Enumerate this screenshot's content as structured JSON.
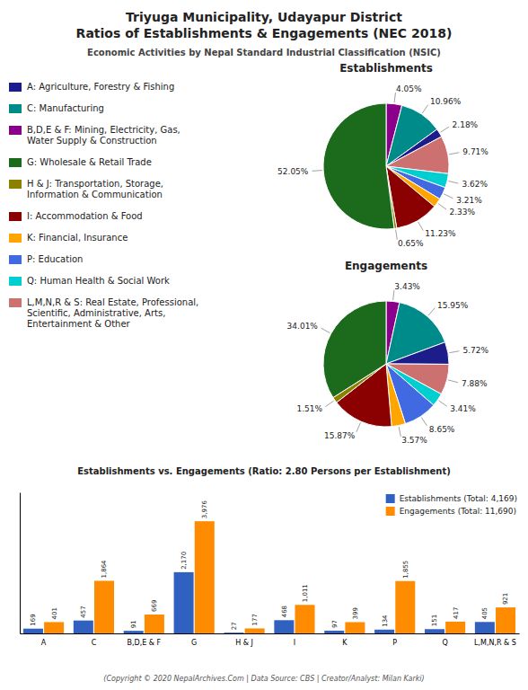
{
  "title": [
    "Triyuga Municipality, Udayapur District",
    "Ratios of Establishments & Engagements (NEC 2018)"
  ],
  "subtitle": "Economic Activities by Nepal Standard Industrial Classification (NSIC)",
  "footer": "(Copyright © 2020 NepalArchives.Com | Data Source: CBS | Creator/Analyst: Milan Karki)",
  "legend_entries": [
    {
      "name": "A: Agriculture, Forestry & Fishing",
      "color": "#1C1C8B"
    },
    {
      "name": "C: Manufacturing",
      "color": "#008B8B"
    },
    {
      "name": "B,D,E & F: Mining, Electricity, Gas,\nWater Supply & Construction",
      "color": "#8B008B"
    },
    {
      "name": "G: Wholesale & Retail Trade",
      "color": "#1C6B1C"
    },
    {
      "name": "H & J: Transportation, Storage,\nInformation & Communication",
      "color": "#8B8000"
    },
    {
      "name": "I: Accommodation & Food",
      "color": "#8B0000"
    },
    {
      "name": "K: Financial, Insurance",
      "color": "#FFA500"
    },
    {
      "name": "P: Education",
      "color": "#4169E1"
    },
    {
      "name": "Q: Human Health & Social Work",
      "color": "#00CED1"
    },
    {
      "name": "L,M,N,R & S: Real Estate, Professional,\nScientific, Administrative, Arts,\nEntertainment & Other",
      "color": "#CD7070"
    }
  ],
  "chart_data": [
    {
      "type": "pie",
      "title": "Establishments",
      "values": [
        4.05,
        10.96,
        2.18,
        9.71,
        3.62,
        3.21,
        2.33,
        11.23,
        0.65,
        52.05
      ],
      "value_labels": [
        "4.05%",
        "10.96%",
        "2.18%",
        "9.71%",
        "3.62%",
        "3.21%",
        "2.33%",
        "11.23%",
        "0.65%",
        "52.05%"
      ],
      "colors": [
        "#8B008B",
        "#008B8B",
        "#1C1C8B",
        "#CD7070",
        "#00CED1",
        "#4169E1",
        "#FFA500",
        "#8B0000",
        "#8B8000",
        "#1C6B1C"
      ],
      "data_labels": true
    },
    {
      "type": "pie",
      "title": "Engagements",
      "values": [
        3.43,
        15.95,
        5.72,
        7.88,
        3.41,
        8.65,
        3.57,
        15.87,
        1.51,
        34.01
      ],
      "value_labels": [
        "3.43%",
        "15.95%",
        "5.72%",
        "7.88%",
        "3.41%",
        "8.65%",
        "3.57%",
        "15.87%",
        "1.51%",
        "34.01%"
      ],
      "colors": [
        "#8B008B",
        "#008B8B",
        "#1C1C8B",
        "#CD7070",
        "#00CED1",
        "#4169E1",
        "#FFA500",
        "#8B0000",
        "#8B8000",
        "#1C6B1C"
      ],
      "data_labels": true
    },
    {
      "type": "bar",
      "title": "Establishments vs. Engagements (Ratio: 2.80 Persons per Establishment)",
      "categories": [
        "A",
        "C",
        "B,D,E & F",
        "G",
        "H & J",
        "I",
        "K",
        "P",
        "Q",
        "L,M,N,R & S"
      ],
      "series": [
        {
          "name": "Establishments (Total: 4,169)",
          "color": "#3060C0",
          "values": [
            169,
            457,
            91,
            2170,
            27,
            468,
            97,
            134,
            151,
            405
          ],
          "value_labels": [
            "169",
            "457",
            "91",
            "2,170",
            "27",
            "468",
            "97",
            "134",
            "151",
            "405"
          ]
        },
        {
          "name": "Engagements (Total: 11,690)",
          "color": "#FF8C00",
          "values": [
            401,
            1864,
            669,
            3976,
            177,
            1011,
            399,
            1855,
            417,
            921
          ],
          "value_labels": [
            "401",
            "1,864",
            "669",
            "3,976",
            "177",
            "1,011",
            "399",
            "1,855",
            "417",
            "921"
          ]
        }
      ],
      "ylim": [
        0,
        5000
      ],
      "tick_labels": "x",
      "data_labels": true,
      "legend": "upper right"
    }
  ]
}
